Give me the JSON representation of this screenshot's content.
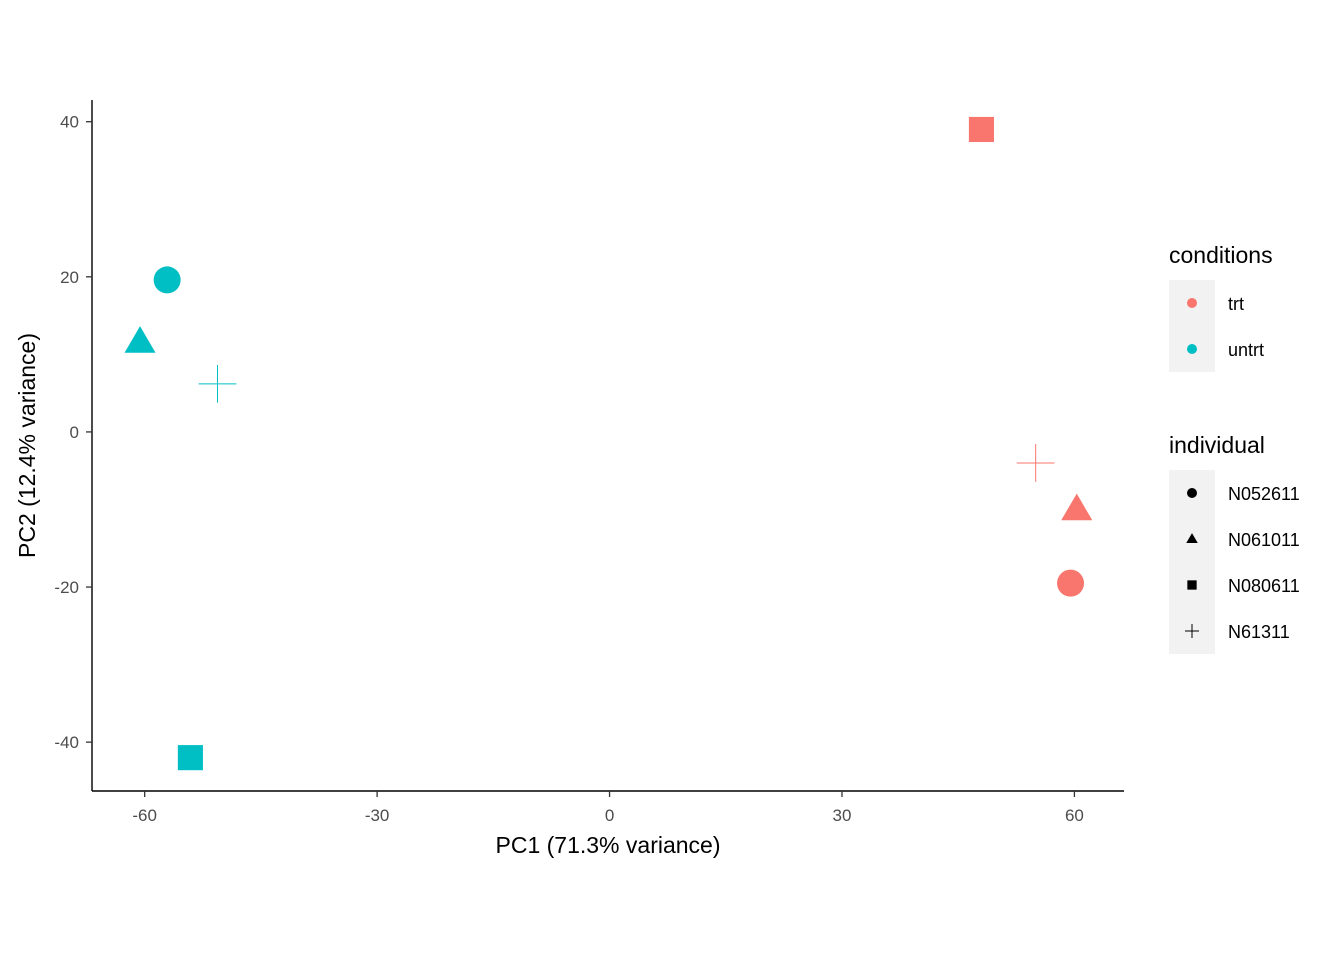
{
  "chart_data": {
    "type": "scatter",
    "xlabel": "PC1 (71.3% variance)",
    "ylabel": "PC2 (12.4% variance)",
    "xlim": [
      -66.8,
      66.4
    ],
    "ylim": [
      -46.3,
      42.8
    ],
    "x_ticks": [
      -60,
      -30,
      0,
      30,
      60
    ],
    "y_ticks": [
      40,
      20,
      0,
      -20,
      -40
    ],
    "x_tick_labels": [
      "-60",
      "-30",
      "0",
      "30",
      "60"
    ],
    "y_tick_labels": [
      "40",
      "20",
      "0",
      "-20",
      "-40"
    ],
    "grid": false,
    "legend_position": "right",
    "legends": [
      {
        "title": "conditions",
        "key": "condition",
        "entries": [
          {
            "label": "trt",
            "value": "trt",
            "color": "#F8766D",
            "shape": "circle"
          },
          {
            "label": "untrt",
            "value": "untrt",
            "color": "#00BFC4",
            "shape": "circle"
          }
        ]
      },
      {
        "title": "individual",
        "key": "individual",
        "entries": [
          {
            "label": "N052611",
            "value": "N052611",
            "color": "#000000",
            "shape": "circle"
          },
          {
            "label": "N061011",
            "value": "N061011",
            "color": "#000000",
            "shape": "triangle"
          },
          {
            "label": "N080611",
            "value": "N080611",
            "color": "#000000",
            "shape": "square"
          },
          {
            "label": "N61311",
            "value": "N61311",
            "color": "#000000",
            "shape": "plus"
          }
        ]
      }
    ],
    "points": [
      {
        "x": -57.1,
        "y": 19.6,
        "condition": "untrt",
        "individual": "N052611"
      },
      {
        "x": -60.6,
        "y": 11.6,
        "condition": "untrt",
        "individual": "N061011"
      },
      {
        "x": -54.1,
        "y": -42.0,
        "condition": "untrt",
        "individual": "N080611"
      },
      {
        "x": -50.6,
        "y": 6.2,
        "condition": "untrt",
        "individual": "N61311"
      },
      {
        "x": 59.5,
        "y": -19.5,
        "condition": "trt",
        "individual": "N052611"
      },
      {
        "x": 60.3,
        "y": -10.0,
        "condition": "trt",
        "individual": "N061011"
      },
      {
        "x": 48.0,
        "y": 39.0,
        "condition": "trt",
        "individual": "N080611"
      },
      {
        "x": 55.0,
        "y": -4.0,
        "condition": "trt",
        "individual": "N61311"
      }
    ]
  }
}
